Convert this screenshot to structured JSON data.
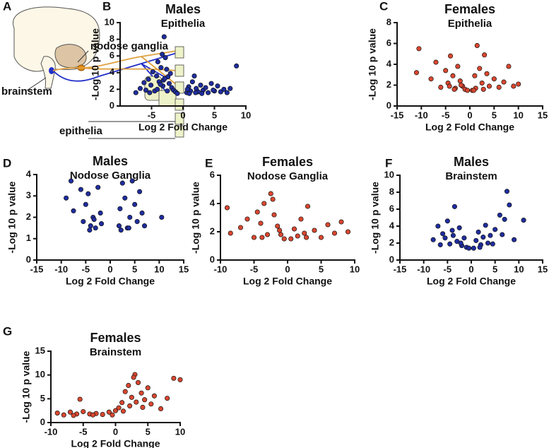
{
  "diagram": {
    "letter": "A",
    "nodose": "nodose ganglia",
    "brainstem": "brainstem",
    "epithelia": "epithelia"
  },
  "chart_data": [
    {
      "type": "scatter",
      "letter": "B",
      "title": "Males",
      "subtitle": "Epithelia",
      "xlabel": "Log 2 Fold Change",
      "ylabel": "-Log 10 p value",
      "color": "#1f2d9e",
      "edgecolor": "#111111",
      "xlim": [
        -10,
        10
      ],
      "ylim": [
        0,
        10
      ],
      "xticks": [
        -5,
        0,
        5,
        10
      ],
      "yticks": [
        0,
        2,
        4,
        6,
        8,
        10
      ],
      "x": [
        -7.5,
        -6.8,
        -6.2,
        -5.9,
        -5.5,
        -5.1,
        -4.8,
        -4.5,
        -4.2,
        -4,
        -3.8,
        -3.5,
        -3.3,
        -3.1,
        -3,
        -2.8,
        -2.6,
        -2.4,
        -2.2,
        -2,
        -1.8,
        -1.5,
        -1.2,
        -0.9,
        -3.2,
        -4.1,
        -2.5,
        -5.3,
        -3.6,
        -2.9,
        0.6,
        0.9,
        1.2,
        1.5,
        1.8,
        2.1,
        2.4,
        2.8,
        3.2,
        3.6,
        4,
        4.5,
        5,
        5.5,
        6,
        6.5,
        7,
        7.5,
        8.5,
        1,
        2,
        3,
        4.8,
        0.7
      ],
      "y": [
        1.6,
        2.1,
        2.8,
        1.9,
        3.2,
        2.5,
        4.1,
        1.8,
        3.6,
        5.3,
        2.9,
        4.6,
        6.2,
        3.1,
        8.3,
        5.8,
        4.4,
        3.5,
        2.7,
        3.9,
        2.2,
        1.9,
        1.7,
        1.5,
        2.4,
        2.0,
        1.8,
        1.6,
        2.6,
        3.3,
        1.6,
        2.3,
        1.8,
        2.9,
        3.6,
        2.1,
        1.7,
        2.5,
        1.9,
        2.2,
        1.6,
        2.7,
        1.8,
        2.4,
        1.7,
        2.0,
        1.6,
        2.1,
        4.8,
        1.5,
        1.6,
        1.5,
        1.9,
        2.0
      ]
    },
    {
      "type": "scatter",
      "letter": "C",
      "title": "Females",
      "subtitle": "Epithelia",
      "xlabel": "Log 2 Fold Change",
      "ylabel": "-Log 10 p value",
      "color": "#d9472f",
      "edgecolor": "#111111",
      "xlim": [
        -15,
        15
      ],
      "ylim": [
        0,
        8
      ],
      "xticks": [
        -15,
        -10,
        -5,
        0,
        5,
        10,
        15
      ],
      "yticks": [
        0,
        2,
        4,
        6,
        8
      ],
      "x": [
        -11,
        -10.5,
        -8,
        -7,
        -6,
        -5,
        -4.5,
        -4,
        -3.5,
        -3,
        -2.5,
        -2,
        -1.5,
        -1,
        -0.5,
        0.5,
        1,
        1.5,
        2,
        2.5,
        3,
        3.5,
        4,
        5,
        6,
        7,
        8,
        9,
        10,
        -3.2,
        1.2,
        -1.8,
        2.8,
        -4.2,
        0.8
      ],
      "y": [
        3.2,
        5.5,
        2.6,
        4.2,
        1.8,
        3.4,
        2.2,
        4.8,
        2.9,
        1.7,
        3.8,
        2.4,
        1.9,
        1.6,
        1.5,
        1.5,
        2.9,
        5.8,
        3.6,
        2.2,
        4.9,
        3.1,
        1.9,
        2.6,
        1.8,
        2.3,
        3.8,
        1.9,
        2.1,
        1.6,
        1.7,
        2.0,
        1.6,
        1.9,
        1.5
      ]
    },
    {
      "type": "scatter",
      "letter": "D",
      "title": "Males",
      "subtitle": "Nodose Ganglia",
      "xlabel": "Log 2 Fold Change",
      "ylabel": "-Log 10 p value",
      "color": "#1f2d9e",
      "edgecolor": "#111111",
      "xlim": [
        -15,
        15
      ],
      "ylim": [
        0,
        4
      ],
      "xticks": [
        -15,
        -10,
        -5,
        0,
        5,
        10,
        15
      ],
      "yticks": [
        0,
        1,
        2,
        3,
        4
      ],
      "x": [
        -9,
        -8,
        -7.5,
        -6,
        -5.5,
        -5,
        -4.5,
        -4,
        -3.5,
        -3,
        -2.5,
        -2,
        -1.8,
        -4.2,
        -3.3,
        1.8,
        2,
        2.5,
        3,
        3.5,
        4,
        4.5,
        5,
        5.5,
        6,
        6.5,
        7,
        10.5,
        2.2,
        3.8
      ],
      "y": [
        2.9,
        3.7,
        2.3,
        3.3,
        1.8,
        2.6,
        3.1,
        1.6,
        2.0,
        1.5,
        3.4,
        2.2,
        1.7,
        1.4,
        1.9,
        1.6,
        2.4,
        3.6,
        2.9,
        1.5,
        2.0,
        3.7,
        2.6,
        1.8,
        3.2,
        2.2,
        1.6,
        2.0,
        1.4,
        1.5
      ]
    },
    {
      "type": "scatter",
      "letter": "E",
      "title": "Females",
      "subtitle": "Nodose Ganglia",
      "xlabel": "Log 2 Fold Change",
      "ylabel": "-Log 10 p value",
      "color": "#d9472f",
      "edgecolor": "#111111",
      "xlim": [
        -10,
        10
      ],
      "ylim": [
        0,
        6
      ],
      "xticks": [
        -10,
        -5,
        0,
        5,
        10
      ],
      "yticks": [
        0,
        2,
        4,
        6
      ],
      "x": [
        -9,
        -8.5,
        -7,
        -6,
        -5,
        -4.5,
        -4,
        -3.5,
        -3,
        -2.5,
        -2,
        -1.5,
        -1,
        -0.5,
        -3.8,
        0.5,
        1,
        1.5,
        2,
        2.5,
        3,
        4,
        5,
        6,
        7,
        8,
        9,
        -2.2,
        -1.2,
        2.8
      ],
      "y": [
        3.7,
        1.9,
        2.3,
        2.9,
        1.6,
        3.4,
        2.6,
        4.0,
        1.8,
        4.7,
        3.2,
        2.4,
        1.8,
        1.5,
        1.6,
        1.5,
        2.2,
        1.7,
        2.9,
        1.9,
        3.8,
        2.1,
        1.6,
        2.5,
        1.9,
        2.7,
        2.0,
        4.3,
        2.1,
        1.6
      ]
    },
    {
      "type": "scatter",
      "letter": "F",
      "title": "Males",
      "subtitle": "Brainstem",
      "xlabel": "Log 2 Fold Change",
      "ylabel": "-Log 10 p value",
      "color": "#1f2d9e",
      "edgecolor": "#111111",
      "xlim": [
        -15,
        15
      ],
      "ylim": [
        0,
        10
      ],
      "xticks": [
        -15,
        -10,
        -5,
        0,
        5,
        10,
        15
      ],
      "yticks": [
        0,
        2,
        4,
        6,
        8,
        10
      ],
      "x": [
        -8,
        -7,
        -6.5,
        -6,
        -5.5,
        -5,
        -4.5,
        -4,
        -3.5,
        -3,
        -2.5,
        -2,
        -1.5,
        -1,
        -0.5,
        0.5,
        1,
        1.5,
        2,
        2.5,
        3,
        3.5,
        4,
        5,
        6,
        7,
        7.5,
        8,
        9,
        11,
        -3.8,
        -2.2,
        1.8,
        4.5,
        6.5
      ],
      "y": [
        2.4,
        4.0,
        1.8,
        3.1,
        2.6,
        4.6,
        1.9,
        3.5,
        6.3,
        2.2,
        3.8,
        1.7,
        2.6,
        1.5,
        1.4,
        1.4,
        2.3,
        3.3,
        1.8,
        2.7,
        4.1,
        2.0,
        2.9,
        3.6,
        5.3,
        4.8,
        8.1,
        6.5,
        2.4,
        4.7,
        2.9,
        2.0,
        1.5,
        1.9,
        3.0
      ]
    },
    {
      "type": "scatter",
      "letter": "G",
      "title": "Females",
      "subtitle": "Brainstem",
      "xlabel": "Log 2 Fold Change",
      "ylabel": "-Log 10 p value",
      "color": "#d9472f",
      "edgecolor": "#111111",
      "xlim": [
        -10,
        10
      ],
      "ylim": [
        0,
        15
      ],
      "xticks": [
        -10,
        -5,
        0,
        5,
        10
      ],
      "yticks": [
        0,
        5,
        10,
        15
      ],
      "x": [
        -9,
        -8,
        -7,
        -6,
        -5.5,
        -5,
        -4,
        -3,
        -2,
        -1,
        -0.5,
        0,
        0.5,
        1,
        1.5,
        2,
        2.5,
        3,
        3.5,
        4,
        4.5,
        5,
        5.5,
        6,
        7,
        8,
        9,
        10,
        2.2,
        3.2,
        1.2,
        2.8,
        4.2,
        -6.5,
        -3.5
      ],
      "y": [
        2.0,
        1.6,
        2.2,
        1.8,
        4.9,
        2.3,
        1.8,
        1.9,
        1.7,
        2.2,
        1.6,
        2.5,
        3.1,
        4.2,
        6.5,
        7.8,
        5.3,
        10.1,
        8.4,
        6.2,
        4.8,
        7.3,
        3.9,
        5.6,
        2.9,
        5.1,
        9.3,
        9.0,
        3.5,
        4.3,
        2.4,
        9.5,
        3.2,
        1.5,
        1.6
      ]
    }
  ]
}
